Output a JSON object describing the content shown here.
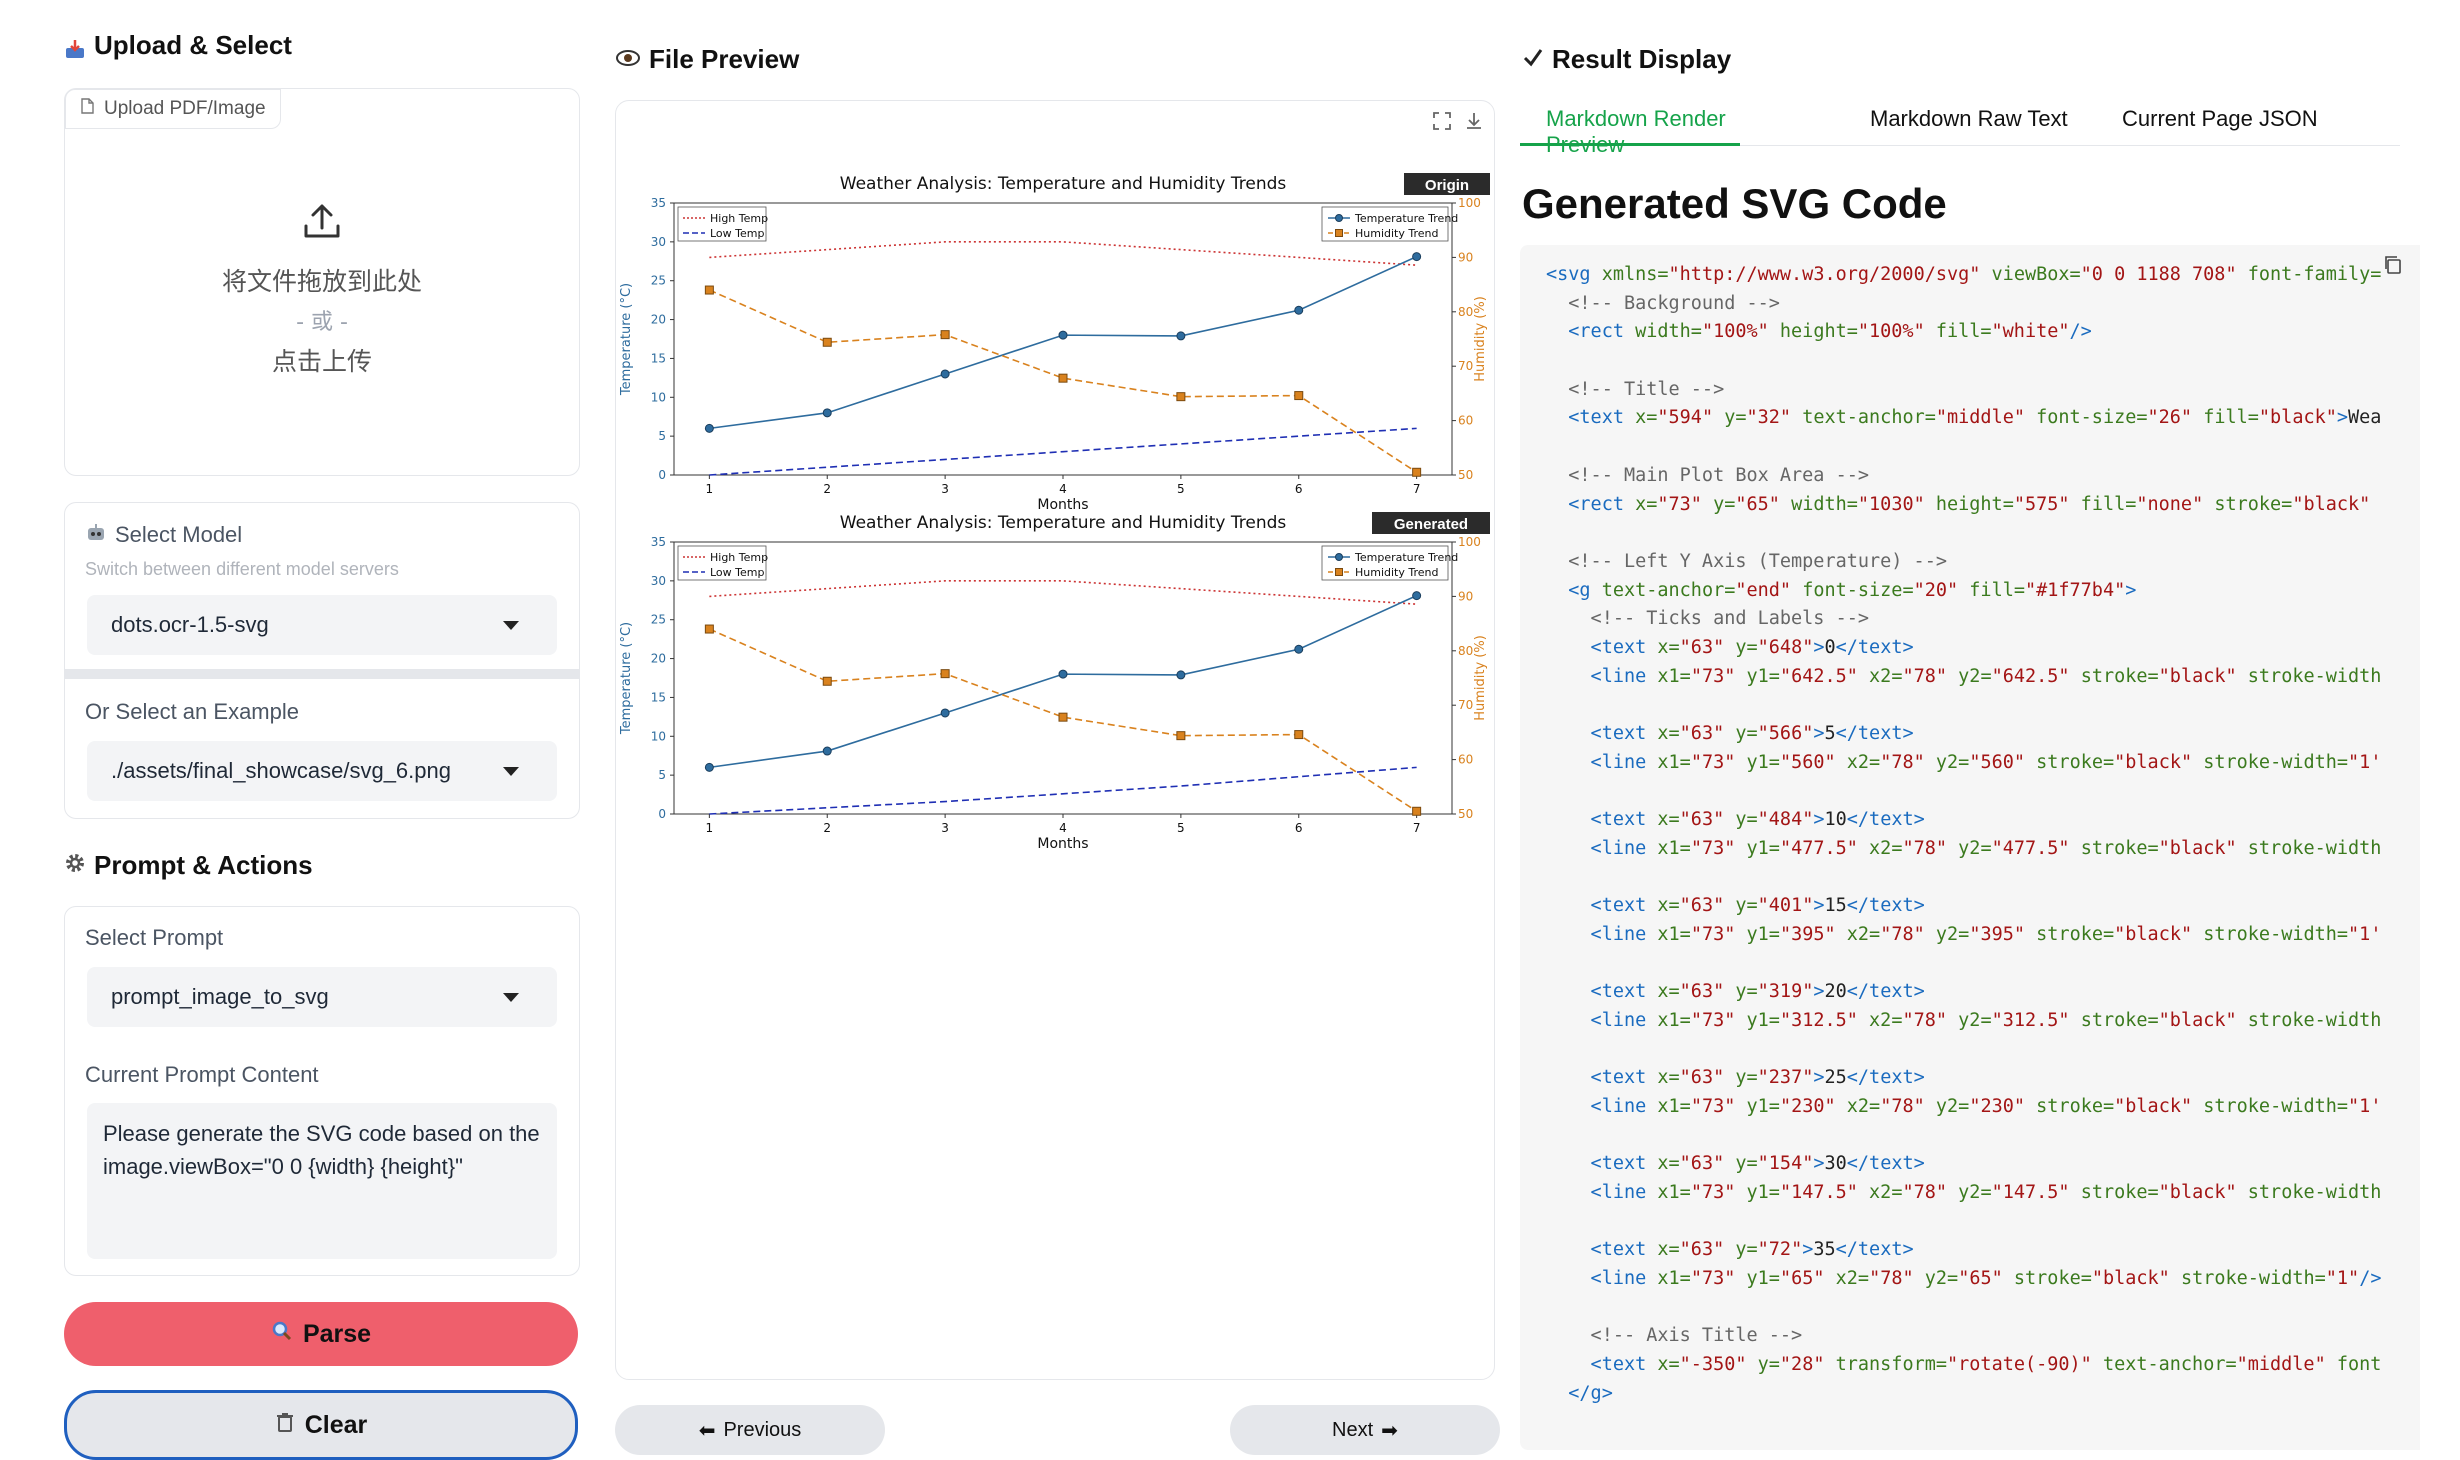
{
  "left": {
    "upload": {
      "title": "Upload & Select",
      "tab_label": "Upload PDF/Image",
      "drop_text": "将文件拖放到此处",
      "or_text": "- 或 -",
      "click_text": "点击上传"
    },
    "model": {
      "label": "Select Model",
      "sublabel": "Switch between different model servers",
      "value": "dots.ocr-1.5-svg"
    },
    "example": {
      "label": "Or Select an Example",
      "value": "./assets/final_showcase/svg_6.png"
    },
    "prompt": {
      "title": "Prompt & Actions",
      "select_label": "Select Prompt",
      "select_value": "prompt_image_to_svg",
      "content_label": "Current Prompt Content",
      "content_value": "Please generate the SVG code based on the image.viewBox=\"0 0 {width} {height}\""
    },
    "buttons": {
      "parse": "Parse",
      "clear": "Clear"
    }
  },
  "middle": {
    "title": "File Preview",
    "prev": "Previous",
    "next": "Next",
    "badge_origin": "Origin",
    "badge_generated": "Generated"
  },
  "right": {
    "title": "Result Display",
    "tabs": [
      "Markdown Render Preview",
      "Markdown Raw Text",
      "Current Page JSON"
    ],
    "heading": "Generated SVG Code"
  },
  "chart_data": [
    {
      "type": "line",
      "title": "Weather Analysis: Temperature and Humidity Trends",
      "xlabel": "Months",
      "ylabel": "Temperature (°C)",
      "y2label": "Humidity (%)",
      "x": [
        1,
        2,
        3,
        4,
        5,
        6,
        7
      ],
      "ylim": [
        0,
        35
      ],
      "y2lim": [
        50,
        100
      ],
      "xticks": [
        1,
        2,
        3,
        4,
        5,
        6,
        7
      ],
      "yticks": [
        0,
        5,
        10,
        15,
        20,
        25,
        30,
        35
      ],
      "y2ticks": [
        50,
        60,
        70,
        80,
        90,
        100
      ],
      "legend_left": [
        "High Temp",
        "Low Temp"
      ],
      "legend_right": [
        "Temperature Trend",
        "Humidity Trend"
      ],
      "series": [
        {
          "name": "High Temp",
          "axis": "left",
          "color": "#cc3333",
          "style": "dotted",
          "values": [
            28,
            29,
            30,
            30,
            29,
            28,
            27
          ]
        },
        {
          "name": "Low Temp",
          "axis": "left",
          "color": "#1f2fb4",
          "style": "dashed",
          "values": [
            0,
            1,
            2,
            3,
            4,
            5,
            6
          ]
        },
        {
          "name": "Temperature Trend",
          "axis": "left",
          "color": "#2e6c9e",
          "style": "solid",
          "marker": "circle",
          "values": [
            6,
            8,
            13,
            18,
            17.9,
            21.2,
            28.1
          ]
        },
        {
          "name": "Humidity Trend",
          "axis": "right",
          "color": "#d9821e",
          "style": "dashed",
          "marker": "square",
          "values": [
            84,
            74.4,
            75.8,
            67.8,
            64.4,
            64.6,
            50.5
          ]
        }
      ]
    },
    {
      "type": "line",
      "title": "Weather Analysis: Temperature and Humidity Trends",
      "xlabel": "Months",
      "ylabel": "Temperature (°C)",
      "y2label": "Humidity (%)",
      "x": [
        1,
        2,
        3,
        4,
        5,
        6,
        7
      ],
      "ylim": [
        0,
        35
      ],
      "y2lim": [
        50,
        100
      ],
      "xticks": [
        1,
        2,
        3,
        4,
        5,
        6,
        7
      ],
      "yticks": [
        0,
        5,
        10,
        15,
        20,
        25,
        30,
        35
      ],
      "y2ticks": [
        50,
        60,
        70,
        80,
        90,
        100
      ],
      "legend_left": [
        "High Temp",
        "Low Temp"
      ],
      "legend_right": [
        "Temperature Trend",
        "Humidity Trend"
      ],
      "series": [
        {
          "name": "High Temp",
          "axis": "left",
          "color": "#cc3333",
          "style": "dotted",
          "values": [
            28,
            29,
            30,
            30,
            29,
            28,
            27
          ]
        },
        {
          "name": "Low Temp",
          "axis": "left",
          "color": "#1f2fb4",
          "style": "dashed",
          "values": [
            0,
            0.8,
            1.6,
            2.6,
            3.6,
            4.8,
            6
          ]
        },
        {
          "name": "Temperature Trend",
          "axis": "left",
          "color": "#2e6c9e",
          "style": "solid",
          "marker": "circle",
          "values": [
            6,
            8.1,
            13,
            18,
            17.9,
            21.2,
            28.1
          ]
        },
        {
          "name": "Humidity Trend",
          "axis": "right",
          "color": "#d9821e",
          "style": "dashed",
          "marker": "square",
          "values": [
            84,
            74.4,
            75.8,
            67.8,
            64.4,
            64.6,
            50.5
          ]
        }
      ]
    }
  ],
  "code_lines": [
    [
      [
        "tg",
        "<svg "
      ],
      [
        "at",
        "xmlns="
      ],
      [
        "vl",
        "\"http://www.w3.org/2000/svg\""
      ],
      [
        "at",
        " viewBox="
      ],
      [
        "vl",
        "\"0 0 1188 708\""
      ],
      [
        "at",
        " font-family="
      ]
    ],
    [
      [
        "cm",
        "  <!-- Background -->"
      ]
    ],
    [
      [
        "tg",
        "  <rect "
      ],
      [
        "at",
        "width="
      ],
      [
        "vl",
        "\"100%\""
      ],
      [
        "at",
        " height="
      ],
      [
        "vl",
        "\"100%\""
      ],
      [
        "at",
        " fill="
      ],
      [
        "vl",
        "\"white\""
      ],
      [
        "tg",
        "/>"
      ]
    ],
    [],
    [
      [
        "cm",
        "  <!-- Title -->"
      ]
    ],
    [
      [
        "tg",
        "  <text "
      ],
      [
        "at",
        "x="
      ],
      [
        "vl",
        "\"594\""
      ],
      [
        "at",
        " y="
      ],
      [
        "vl",
        "\"32\""
      ],
      [
        "at",
        " text-anchor="
      ],
      [
        "vl",
        "\"middle\""
      ],
      [
        "at",
        " font-size="
      ],
      [
        "vl",
        "\"26\""
      ],
      [
        "at",
        " fill="
      ],
      [
        "vl",
        "\"black\""
      ],
      [
        "tg",
        ">"
      ],
      [
        "",
        "Wea"
      ]
    ],
    [],
    [
      [
        "cm",
        "  <!-- Main Plot Box Area -->"
      ]
    ],
    [
      [
        "tg",
        "  <rect "
      ],
      [
        "at",
        "x="
      ],
      [
        "vl",
        "\"73\""
      ],
      [
        "at",
        " y="
      ],
      [
        "vl",
        "\"65\""
      ],
      [
        "at",
        " width="
      ],
      [
        "vl",
        "\"1030\""
      ],
      [
        "at",
        " height="
      ],
      [
        "vl",
        "\"575\""
      ],
      [
        "at",
        " fill="
      ],
      [
        "vl",
        "\"none\""
      ],
      [
        "at",
        " stroke="
      ],
      [
        "vl",
        "\"black\""
      ]
    ],
    [],
    [
      [
        "cm",
        "  <!-- Left Y Axis (Temperature) -->"
      ]
    ],
    [
      [
        "tg",
        "  <g "
      ],
      [
        "at",
        "text-anchor="
      ],
      [
        "vl",
        "\"end\""
      ],
      [
        "at",
        " font-size="
      ],
      [
        "vl",
        "\"20\""
      ],
      [
        "at",
        " fill="
      ],
      [
        "vl",
        "\"#1f77b4\""
      ],
      [
        "tg",
        ">"
      ]
    ],
    [
      [
        "cm",
        "    <!-- Ticks and Labels -->"
      ]
    ],
    [
      [
        "tg",
        "    <text "
      ],
      [
        "at",
        "x="
      ],
      [
        "vl",
        "\"63\""
      ],
      [
        "at",
        " y="
      ],
      [
        "vl",
        "\"648\""
      ],
      [
        "tg",
        ">"
      ],
      [
        "",
        "0"
      ],
      [
        "tg",
        "</text>"
      ]
    ],
    [
      [
        "tg",
        "    <line "
      ],
      [
        "at",
        "x1="
      ],
      [
        "vl",
        "\"73\""
      ],
      [
        "at",
        " y1="
      ],
      [
        "vl",
        "\"642.5\""
      ],
      [
        "at",
        " x2="
      ],
      [
        "vl",
        "\"78\""
      ],
      [
        "at",
        " y2="
      ],
      [
        "vl",
        "\"642.5\""
      ],
      [
        "at",
        " stroke="
      ],
      [
        "vl",
        "\"black\""
      ],
      [
        "at",
        " stroke-width"
      ]
    ],
    [],
    [
      [
        "tg",
        "    <text "
      ],
      [
        "at",
        "x="
      ],
      [
        "vl",
        "\"63\""
      ],
      [
        "at",
        " y="
      ],
      [
        "vl",
        "\"566\""
      ],
      [
        "tg",
        ">"
      ],
      [
        "",
        "5"
      ],
      [
        "tg",
        "</text>"
      ]
    ],
    [
      [
        "tg",
        "    <line "
      ],
      [
        "at",
        "x1="
      ],
      [
        "vl",
        "\"73\""
      ],
      [
        "at",
        " y1="
      ],
      [
        "vl",
        "\"560\""
      ],
      [
        "at",
        " x2="
      ],
      [
        "vl",
        "\"78\""
      ],
      [
        "at",
        " y2="
      ],
      [
        "vl",
        "\"560\""
      ],
      [
        "at",
        " stroke="
      ],
      [
        "vl",
        "\"black\""
      ],
      [
        "at",
        " stroke-width="
      ],
      [
        "vl",
        "\"1'"
      ]
    ],
    [],
    [
      [
        "tg",
        "    <text "
      ],
      [
        "at",
        "x="
      ],
      [
        "vl",
        "\"63\""
      ],
      [
        "at",
        " y="
      ],
      [
        "vl",
        "\"484\""
      ],
      [
        "tg",
        ">"
      ],
      [
        "",
        "10"
      ],
      [
        "tg",
        "</text>"
      ]
    ],
    [
      [
        "tg",
        "    <line "
      ],
      [
        "at",
        "x1="
      ],
      [
        "vl",
        "\"73\""
      ],
      [
        "at",
        " y1="
      ],
      [
        "vl",
        "\"477.5\""
      ],
      [
        "at",
        " x2="
      ],
      [
        "vl",
        "\"78\""
      ],
      [
        "at",
        " y2="
      ],
      [
        "vl",
        "\"477.5\""
      ],
      [
        "at",
        " stroke="
      ],
      [
        "vl",
        "\"black\""
      ],
      [
        "at",
        " stroke-width"
      ]
    ],
    [],
    [
      [
        "tg",
        "    <text "
      ],
      [
        "at",
        "x="
      ],
      [
        "vl",
        "\"63\""
      ],
      [
        "at",
        " y="
      ],
      [
        "vl",
        "\"401\""
      ],
      [
        "tg",
        ">"
      ],
      [
        "",
        "15"
      ],
      [
        "tg",
        "</text>"
      ]
    ],
    [
      [
        "tg",
        "    <line "
      ],
      [
        "at",
        "x1="
      ],
      [
        "vl",
        "\"73\""
      ],
      [
        "at",
        " y1="
      ],
      [
        "vl",
        "\"395\""
      ],
      [
        "at",
        " x2="
      ],
      [
        "vl",
        "\"78\""
      ],
      [
        "at",
        " y2="
      ],
      [
        "vl",
        "\"395\""
      ],
      [
        "at",
        " stroke="
      ],
      [
        "vl",
        "\"black\""
      ],
      [
        "at",
        " stroke-width="
      ],
      [
        "vl",
        "\"1'"
      ]
    ],
    [],
    [
      [
        "tg",
        "    <text "
      ],
      [
        "at",
        "x="
      ],
      [
        "vl",
        "\"63\""
      ],
      [
        "at",
        " y="
      ],
      [
        "vl",
        "\"319\""
      ],
      [
        "tg",
        ">"
      ],
      [
        "",
        "20"
      ],
      [
        "tg",
        "</text>"
      ]
    ],
    [
      [
        "tg",
        "    <line "
      ],
      [
        "at",
        "x1="
      ],
      [
        "vl",
        "\"73\""
      ],
      [
        "at",
        " y1="
      ],
      [
        "vl",
        "\"312.5\""
      ],
      [
        "at",
        " x2="
      ],
      [
        "vl",
        "\"78\""
      ],
      [
        "at",
        " y2="
      ],
      [
        "vl",
        "\"312.5\""
      ],
      [
        "at",
        " stroke="
      ],
      [
        "vl",
        "\"black\""
      ],
      [
        "at",
        " stroke-width"
      ]
    ],
    [],
    [
      [
        "tg",
        "    <text "
      ],
      [
        "at",
        "x="
      ],
      [
        "vl",
        "\"63\""
      ],
      [
        "at",
        " y="
      ],
      [
        "vl",
        "\"237\""
      ],
      [
        "tg",
        ">"
      ],
      [
        "",
        "25"
      ],
      [
        "tg",
        "</text>"
      ]
    ],
    [
      [
        "tg",
        "    <line "
      ],
      [
        "at",
        "x1="
      ],
      [
        "vl",
        "\"73\""
      ],
      [
        "at",
        " y1="
      ],
      [
        "vl",
        "\"230\""
      ],
      [
        "at",
        " x2="
      ],
      [
        "vl",
        "\"78\""
      ],
      [
        "at",
        " y2="
      ],
      [
        "vl",
        "\"230\""
      ],
      [
        "at",
        " stroke="
      ],
      [
        "vl",
        "\"black\""
      ],
      [
        "at",
        " stroke-width="
      ],
      [
        "vl",
        "\"1'"
      ]
    ],
    [],
    [
      [
        "tg",
        "    <text "
      ],
      [
        "at",
        "x="
      ],
      [
        "vl",
        "\"63\""
      ],
      [
        "at",
        " y="
      ],
      [
        "vl",
        "\"154\""
      ],
      [
        "tg",
        ">"
      ],
      [
        "",
        "30"
      ],
      [
        "tg",
        "</text>"
      ]
    ],
    [
      [
        "tg",
        "    <line "
      ],
      [
        "at",
        "x1="
      ],
      [
        "vl",
        "\"73\""
      ],
      [
        "at",
        " y1="
      ],
      [
        "vl",
        "\"147.5\""
      ],
      [
        "at",
        " x2="
      ],
      [
        "vl",
        "\"78\""
      ],
      [
        "at",
        " y2="
      ],
      [
        "vl",
        "\"147.5\""
      ],
      [
        "at",
        " stroke="
      ],
      [
        "vl",
        "\"black\""
      ],
      [
        "at",
        " stroke-width"
      ]
    ],
    [],
    [
      [
        "tg",
        "    <text "
      ],
      [
        "at",
        "x="
      ],
      [
        "vl",
        "\"63\""
      ],
      [
        "at",
        " y="
      ],
      [
        "vl",
        "\"72\""
      ],
      [
        "tg",
        ">"
      ],
      [
        "",
        "35"
      ],
      [
        "tg",
        "</text>"
      ]
    ],
    [
      [
        "tg",
        "    <line "
      ],
      [
        "at",
        "x1="
      ],
      [
        "vl",
        "\"73\""
      ],
      [
        "at",
        " y1="
      ],
      [
        "vl",
        "\"65\""
      ],
      [
        "at",
        " x2="
      ],
      [
        "vl",
        "\"78\""
      ],
      [
        "at",
        " y2="
      ],
      [
        "vl",
        "\"65\""
      ],
      [
        "at",
        " stroke="
      ],
      [
        "vl",
        "\"black\""
      ],
      [
        "at",
        " stroke-width="
      ],
      [
        "vl",
        "\"1\""
      ],
      [
        "tg",
        "/>"
      ]
    ],
    [],
    [
      [
        "cm",
        "    <!-- Axis Title -->"
      ]
    ],
    [
      [
        "tg",
        "    <text "
      ],
      [
        "at",
        "x="
      ],
      [
        "vl",
        "\"-350\""
      ],
      [
        "at",
        " y="
      ],
      [
        "vl",
        "\"28\""
      ],
      [
        "at",
        " transform="
      ],
      [
        "vl",
        "\"rotate(-90)\""
      ],
      [
        "at",
        " text-anchor="
      ],
      [
        "vl",
        "\"middle\""
      ],
      [
        "at",
        " font"
      ]
    ],
    [
      [
        "tg",
        "  </g>"
      ]
    ]
  ]
}
